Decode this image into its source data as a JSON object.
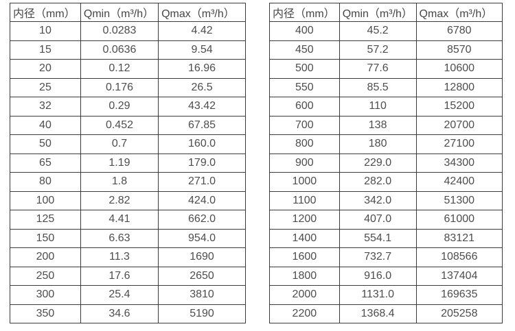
{
  "colors": {
    "border": "#3a3a3a",
    "text": "#4d4d4d",
    "background": "#ffffff"
  },
  "tables": [
    {
      "name": "small-diameter-flow-table",
      "headers": [
        "内径（mm）",
        "Qmin（m³/h）",
        "Qmax（m³/h）"
      ],
      "rows": [
        [
          "10",
          "0.0283",
          "4.42"
        ],
        [
          "15",
          "0.0636",
          "9.54"
        ],
        [
          "20",
          "0.12",
          "16.96"
        ],
        [
          "25",
          "0.176",
          "26.5"
        ],
        [
          "32",
          "0.29",
          "43.42"
        ],
        [
          "40",
          "0.452",
          "67.85"
        ],
        [
          "50",
          "0.7",
          "160.0"
        ],
        [
          "65",
          "1.19",
          "179.0"
        ],
        [
          "80",
          "1.8",
          "271.0"
        ],
        [
          "100",
          "2.82",
          "424.0"
        ],
        [
          "125",
          "4.41",
          "662.0"
        ],
        [
          "150",
          "6.63",
          "954.0"
        ],
        [
          "200",
          "11.3",
          "1690"
        ],
        [
          "250",
          "17.6",
          "2650"
        ],
        [
          "300",
          "25.4",
          "3810"
        ],
        [
          "350",
          "34.6",
          "5190"
        ]
      ]
    },
    {
      "name": "large-diameter-flow-table",
      "headers": [
        "内径（mm）",
        "Qmin（m³/h）",
        "Qmax（m³/h）"
      ],
      "rows": [
        [
          "400",
          "45.2",
          "6780"
        ],
        [
          "450",
          "57.2",
          "8570"
        ],
        [
          "500",
          "77.6",
          "10600"
        ],
        [
          "550",
          "85.5",
          "12800"
        ],
        [
          "600",
          "110",
          "15200"
        ],
        [
          "700",
          "138",
          "20700"
        ],
        [
          "800",
          "180",
          "27100"
        ],
        [
          "900",
          "229.0",
          "34300"
        ],
        [
          "1000",
          "282.0",
          "42400"
        ],
        [
          "1100",
          "342.0",
          "51300"
        ],
        [
          "1200",
          "407.0",
          "61000"
        ],
        [
          "1400",
          "554.1",
          "83121"
        ],
        [
          "1600",
          "732.7",
          "108566"
        ],
        [
          "1800",
          "916.0",
          "137404"
        ],
        [
          "2000",
          "1131.0",
          "169635"
        ],
        [
          "2200",
          "1368.4",
          "205258"
        ]
      ]
    }
  ]
}
